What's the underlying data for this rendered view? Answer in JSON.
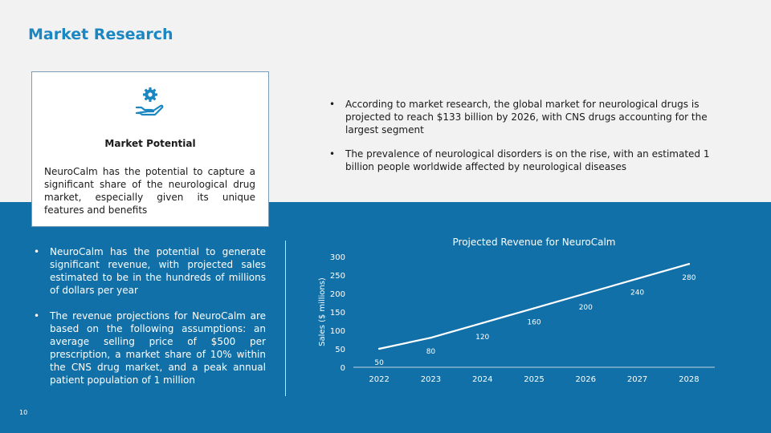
{
  "page": {
    "title": "Market Research",
    "page_number": "10"
  },
  "card": {
    "icon": "hand-gear-icon",
    "heading": "Market Potential",
    "body": "NeuroCalm has the potential to capture a significant share of the neurological drug market, especially given its unique features and benefits"
  },
  "right_bullets": [
    "According to market research, the global market for neurological drugs is projected to reach $133 billion by 2026, with CNS drugs accounting for the largest segment",
    "The prevalence of neurological disorders is on the rise, with an estimated 1 billion people worldwide affected by neurological diseases"
  ],
  "left_bullets": [
    "NeuroCalm has the potential to generate significant revenue, with projected sales estimated to be in the hundreds of millions of dollars per year",
    "The revenue projections for NeuroCalm are based on the following assumptions: an average selling price of $500 per prescription, a market share of 10% within the CNS drug market, and a peak annual patient population of 1 million"
  ],
  "colors": {
    "accent": "#1A87C2",
    "band": "#1170A8",
    "line": "#FFFFFF"
  },
  "chart_data": {
    "type": "line",
    "title": "Projected Revenue for NeuroCalm",
    "xlabel": "",
    "ylabel": "Sales ($ millions)",
    "categories": [
      "2022",
      "2023",
      "2024",
      "2025",
      "2026",
      "2027",
      "2028"
    ],
    "values": [
      50,
      80,
      120,
      160,
      200,
      240,
      280
    ],
    "ylim": [
      0,
      300
    ],
    "yticks": [
      0,
      50,
      100,
      150,
      200,
      250,
      300
    ],
    "grid": false,
    "legend": "none",
    "data_labels": true
  }
}
